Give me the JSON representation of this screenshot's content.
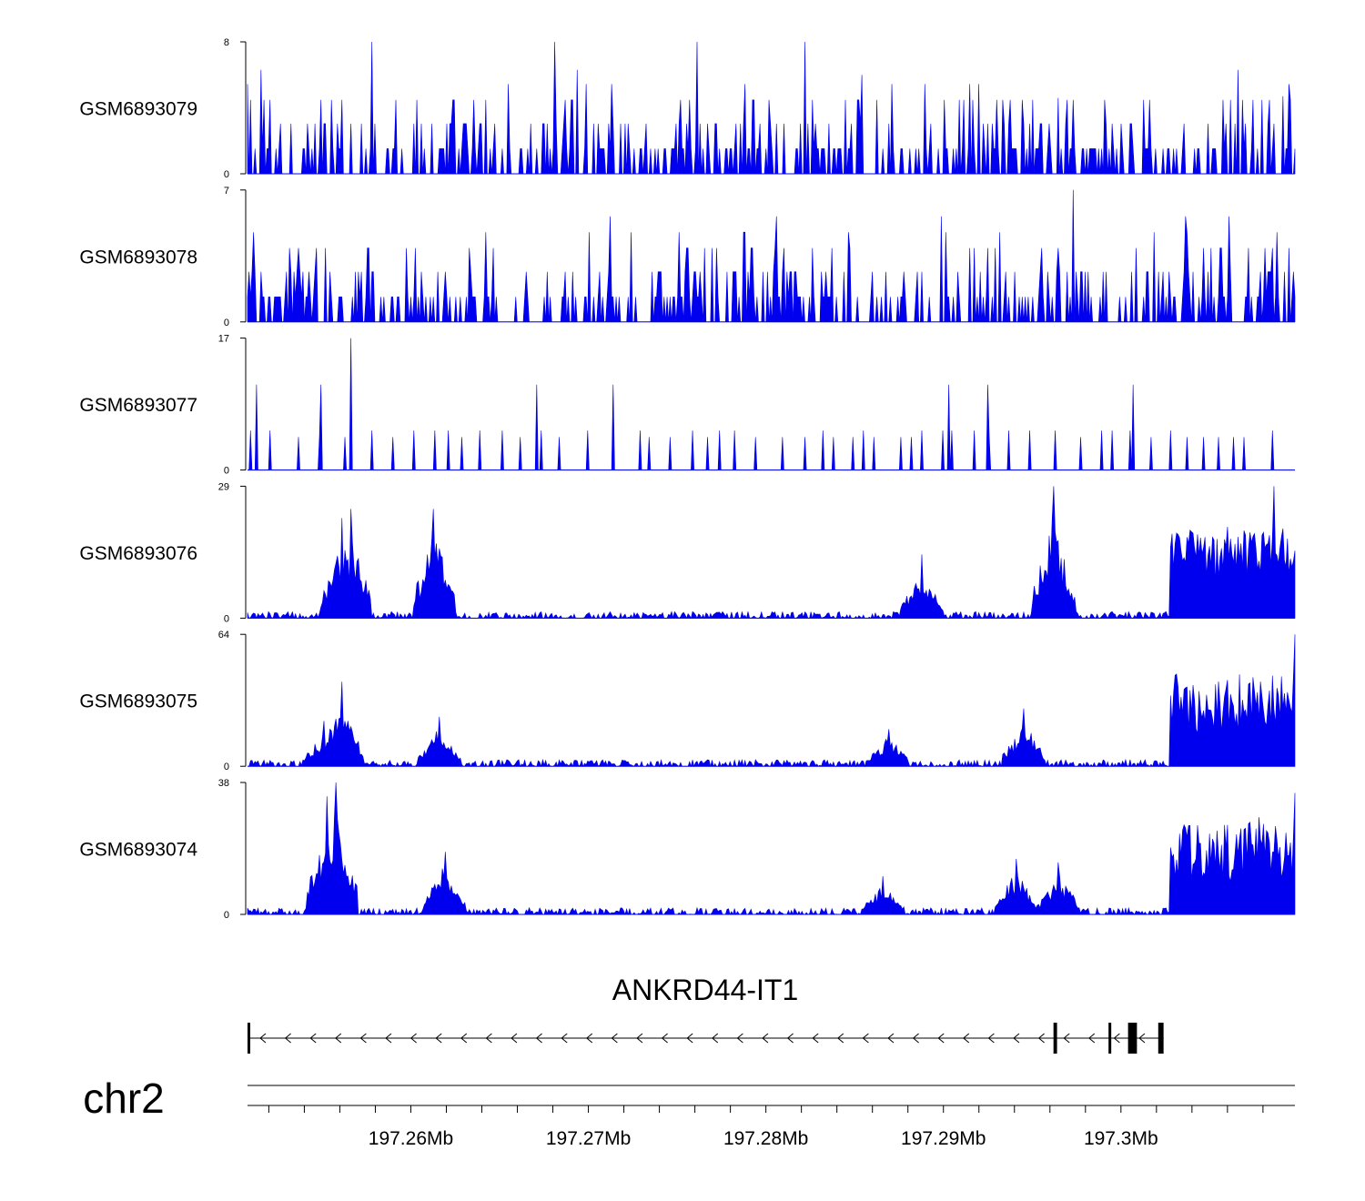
{
  "chart_data": {
    "type": "area",
    "track_color": "#0000ee",
    "chromosome": "chr2",
    "gene": {
      "name": "ANKRD44-IT1",
      "strand": "-",
      "start_mb": 197.2508,
      "end_mb": 197.3024,
      "exons_mb": [
        [
          197.2508,
          197.2509
        ],
        [
          197.2962,
          197.2964
        ],
        [
          197.2993,
          197.2994
        ],
        [
          197.3004,
          197.3009
        ],
        [
          197.3021,
          197.3024
        ]
      ]
    },
    "x_range_mb": [
      197.2508,
      197.3098
    ],
    "x_ticks": [
      {
        "value": 197.26,
        "label": "197.26Mb"
      },
      {
        "value": 197.27,
        "label": "197.27Mb"
      },
      {
        "value": 197.28,
        "label": "197.28Mb"
      },
      {
        "value": 197.29,
        "label": "197.29Mb"
      },
      {
        "value": 197.3,
        "label": "197.3Mb"
      }
    ],
    "tracks": [
      {
        "name": "GSM6893079",
        "ymax": 8,
        "ymin": 0,
        "ymax_label": "8",
        "ymin_label": "0",
        "style": "sparse",
        "peaks": [
          [
            197.2516,
            6.3
          ],
          [
            197.2578,
            8.0
          ],
          [
            197.2681,
            8.0
          ],
          [
            197.2694,
            6.3
          ],
          [
            197.2761,
            8.0
          ],
          [
            197.2822,
            8.0
          ],
          [
            197.2854,
            6.0
          ],
          [
            197.2965,
            4.6
          ],
          [
            197.3066,
            6.3
          ],
          [
            197.3091,
            4.7
          ]
        ]
      },
      {
        "name": "GSM6893078",
        "ymax": 7,
        "ymin": 0,
        "ymax_label": "7",
        "ymin_label": "0",
        "style": "sparse",
        "peaks": [
          [
            197.2712,
            5.6
          ],
          [
            197.2806,
            5.6
          ],
          [
            197.2899,
            5.6
          ],
          [
            197.2973,
            7.0
          ],
          [
            197.3036,
            5.6
          ],
          [
            197.3061,
            5.6
          ]
        ]
      },
      {
        "name": "GSM6893077",
        "ymax": 17,
        "ymin": 0,
        "ymax_label": "17",
        "ymin_label": "0",
        "style": "triangles",
        "peaks": [
          [
            197.2513,
            11.0
          ],
          [
            197.2549,
            11.0
          ],
          [
            197.2566,
            17.0
          ],
          [
            197.2671,
            11.0
          ],
          [
            197.2714,
            11.0
          ],
          [
            197.2903,
            11.0
          ],
          [
            197.2925,
            11.0
          ],
          [
            197.3007,
            11.0
          ]
        ]
      },
      {
        "name": "GSM6893076",
        "ymax": 29,
        "ymin": 0,
        "ymax_label": "29",
        "ymin_label": "0",
        "style": "dense",
        "peaks": [
          [
            197.2561,
            22.0
          ],
          [
            197.2566,
            24.0
          ],
          [
            197.2613,
            24.0
          ],
          [
            197.2888,
            14.0
          ],
          [
            197.2962,
            29.0
          ],
          [
            197.3044,
            14.0
          ],
          [
            197.3086,
            29.0
          ]
        ]
      },
      {
        "name": "GSM6893075",
        "ymax": 64,
        "ymin": 0,
        "ymax_label": "64",
        "ymin_label": "0",
        "style": "dense",
        "peaks": [
          [
            197.2551,
            22.0
          ],
          [
            197.2561,
            41.0
          ],
          [
            197.2616,
            24.0
          ],
          [
            197.2869,
            18.0
          ],
          [
            197.2945,
            28.0
          ],
          [
            197.3062,
            35.0
          ],
          [
            197.3088,
            38.0
          ],
          [
            197.3098,
            64.0
          ]
        ]
      },
      {
        "name": "GSM6893074",
        "ymax": 38,
        "ymin": 0,
        "ymax_label": "38",
        "ymin_label": "0",
        "style": "dense",
        "peaks": [
          [
            197.2553,
            34.0
          ],
          [
            197.2558,
            38.0
          ],
          [
            197.2619,
            18.0
          ],
          [
            197.2866,
            11.0
          ],
          [
            197.2941,
            16.0
          ],
          [
            197.2965,
            15.0
          ],
          [
            197.3078,
            28.0
          ],
          [
            197.3098,
            35.0
          ]
        ]
      }
    ]
  }
}
